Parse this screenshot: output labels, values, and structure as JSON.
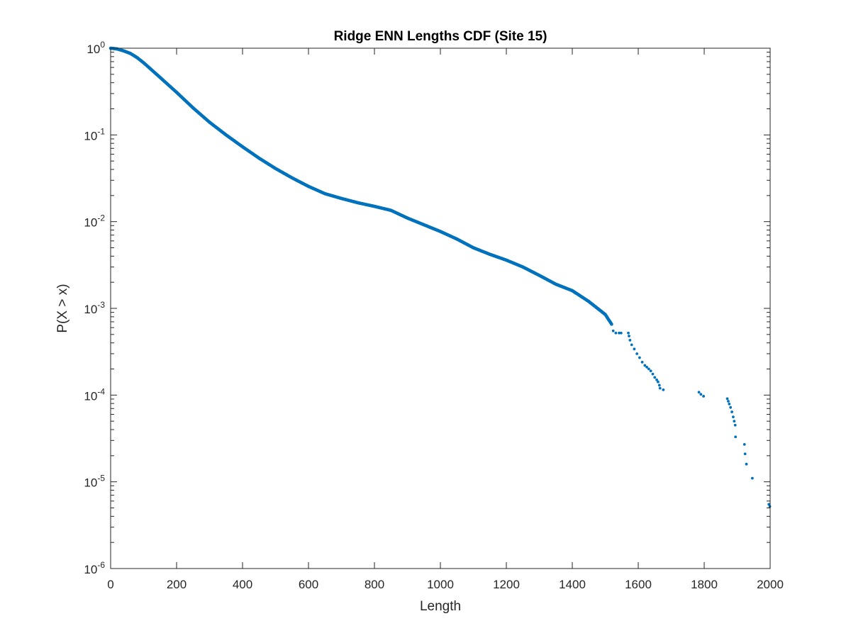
{
  "chart_data": {
    "type": "scatter",
    "title": "Ridge ENN Lengths CDF (Site 15)",
    "xlabel": "Length",
    "ylabel": "P(X > x)",
    "xlim": [
      0,
      2000
    ],
    "ylim": [
      1e-06,
      1
    ],
    "yscale": "log",
    "grid": false,
    "x_ticks": [
      0,
      200,
      400,
      600,
      800,
      1000,
      1200,
      1400,
      1600,
      1800,
      2000
    ],
    "y_ticks": [
      {
        "value": 1e-06,
        "base": "10",
        "exp": "-6"
      },
      {
        "value": 1e-05,
        "base": "10",
        "exp": "-5"
      },
      {
        "value": 0.0001,
        "base": "10",
        "exp": "-4"
      },
      {
        "value": 0.001,
        "base": "10",
        "exp": "-3"
      },
      {
        "value": 0.01,
        "base": "10",
        "exp": "-2"
      },
      {
        "value": 0.1,
        "base": "10",
        "exp": "-1"
      },
      {
        "value": 1,
        "base": "10",
        "exp": "0"
      }
    ],
    "marker_color": "#0072BD",
    "series": [
      {
        "dense_curve": [
          [
            0,
            1.0
          ],
          [
            20,
            0.98
          ],
          [
            40,
            0.93
          ],
          [
            60,
            0.87
          ],
          [
            80,
            0.78
          ],
          [
            100,
            0.68
          ],
          [
            150,
            0.46
          ],
          [
            200,
            0.31
          ],
          [
            250,
            0.205
          ],
          [
            300,
            0.14
          ],
          [
            350,
            0.1
          ],
          [
            400,
            0.073
          ],
          [
            450,
            0.054
          ],
          [
            500,
            0.041
          ],
          [
            550,
            0.032
          ],
          [
            600,
            0.0255
          ],
          [
            650,
            0.021
          ],
          [
            700,
            0.0185
          ],
          [
            750,
            0.0165
          ],
          [
            800,
            0.015
          ],
          [
            850,
            0.0135
          ],
          [
            900,
            0.011
          ],
          [
            950,
            0.0092
          ],
          [
            1000,
            0.0077
          ],
          [
            1050,
            0.0063
          ],
          [
            1100,
            0.005
          ],
          [
            1150,
            0.0042
          ],
          [
            1200,
            0.0036
          ],
          [
            1250,
            0.003
          ],
          [
            1300,
            0.0024
          ],
          [
            1350,
            0.0019
          ],
          [
            1400,
            0.0016
          ],
          [
            1450,
            0.0012
          ],
          [
            1500,
            0.00085
          ],
          [
            1520,
            0.00065
          ]
        ],
        "tail_points": [
          [
            1524,
            0.00055
          ],
          [
            1532,
            0.00052
          ],
          [
            1542,
            0.00052
          ],
          [
            1548,
            0.00052
          ],
          [
            1570,
            0.00052
          ],
          [
            1572,
            0.00048
          ],
          [
            1575,
            0.00043
          ],
          [
            1580,
            0.00038
          ],
          [
            1588,
            0.00034
          ],
          [
            1596,
            0.0003
          ],
          [
            1604,
            0.00027
          ],
          [
            1612,
            0.00024
          ],
          [
            1620,
            0.00022
          ],
          [
            1626,
            0.00021
          ],
          [
            1632,
            0.0002
          ],
          [
            1638,
            0.00019
          ],
          [
            1644,
            0.000175
          ],
          [
            1650,
            0.00016
          ],
          [
            1656,
            0.00015
          ],
          [
            1660,
            0.000142
          ],
          [
            1664,
            0.00013
          ],
          [
            1666,
            0.00012
          ],
          [
            1676,
            0.000115
          ],
          [
            1784,
            0.000108
          ],
          [
            1790,
            0.000102
          ],
          [
            1798,
            9.7e-05
          ],
          [
            1870,
            9.1e-05
          ],
          [
            1873,
            8.5e-05
          ],
          [
            1876,
            7.9e-05
          ],
          [
            1880,
            7.2e-05
          ],
          [
            1884,
            6.4e-05
          ],
          [
            1888,
            5.6e-05
          ],
          [
            1891,
            5e-05
          ],
          [
            1894,
            4.5e-05
          ],
          [
            1895,
            3.3e-05
          ],
          [
            1922,
            2.7e-05
          ],
          [
            1924,
            2.1e-05
          ],
          [
            1928,
            1.6e-05
          ],
          [
            1946,
            1.1e-05
          ],
          [
            1996,
            5.5e-06
          ],
          [
            1999,
            5.2e-06
          ]
        ]
      }
    ]
  }
}
